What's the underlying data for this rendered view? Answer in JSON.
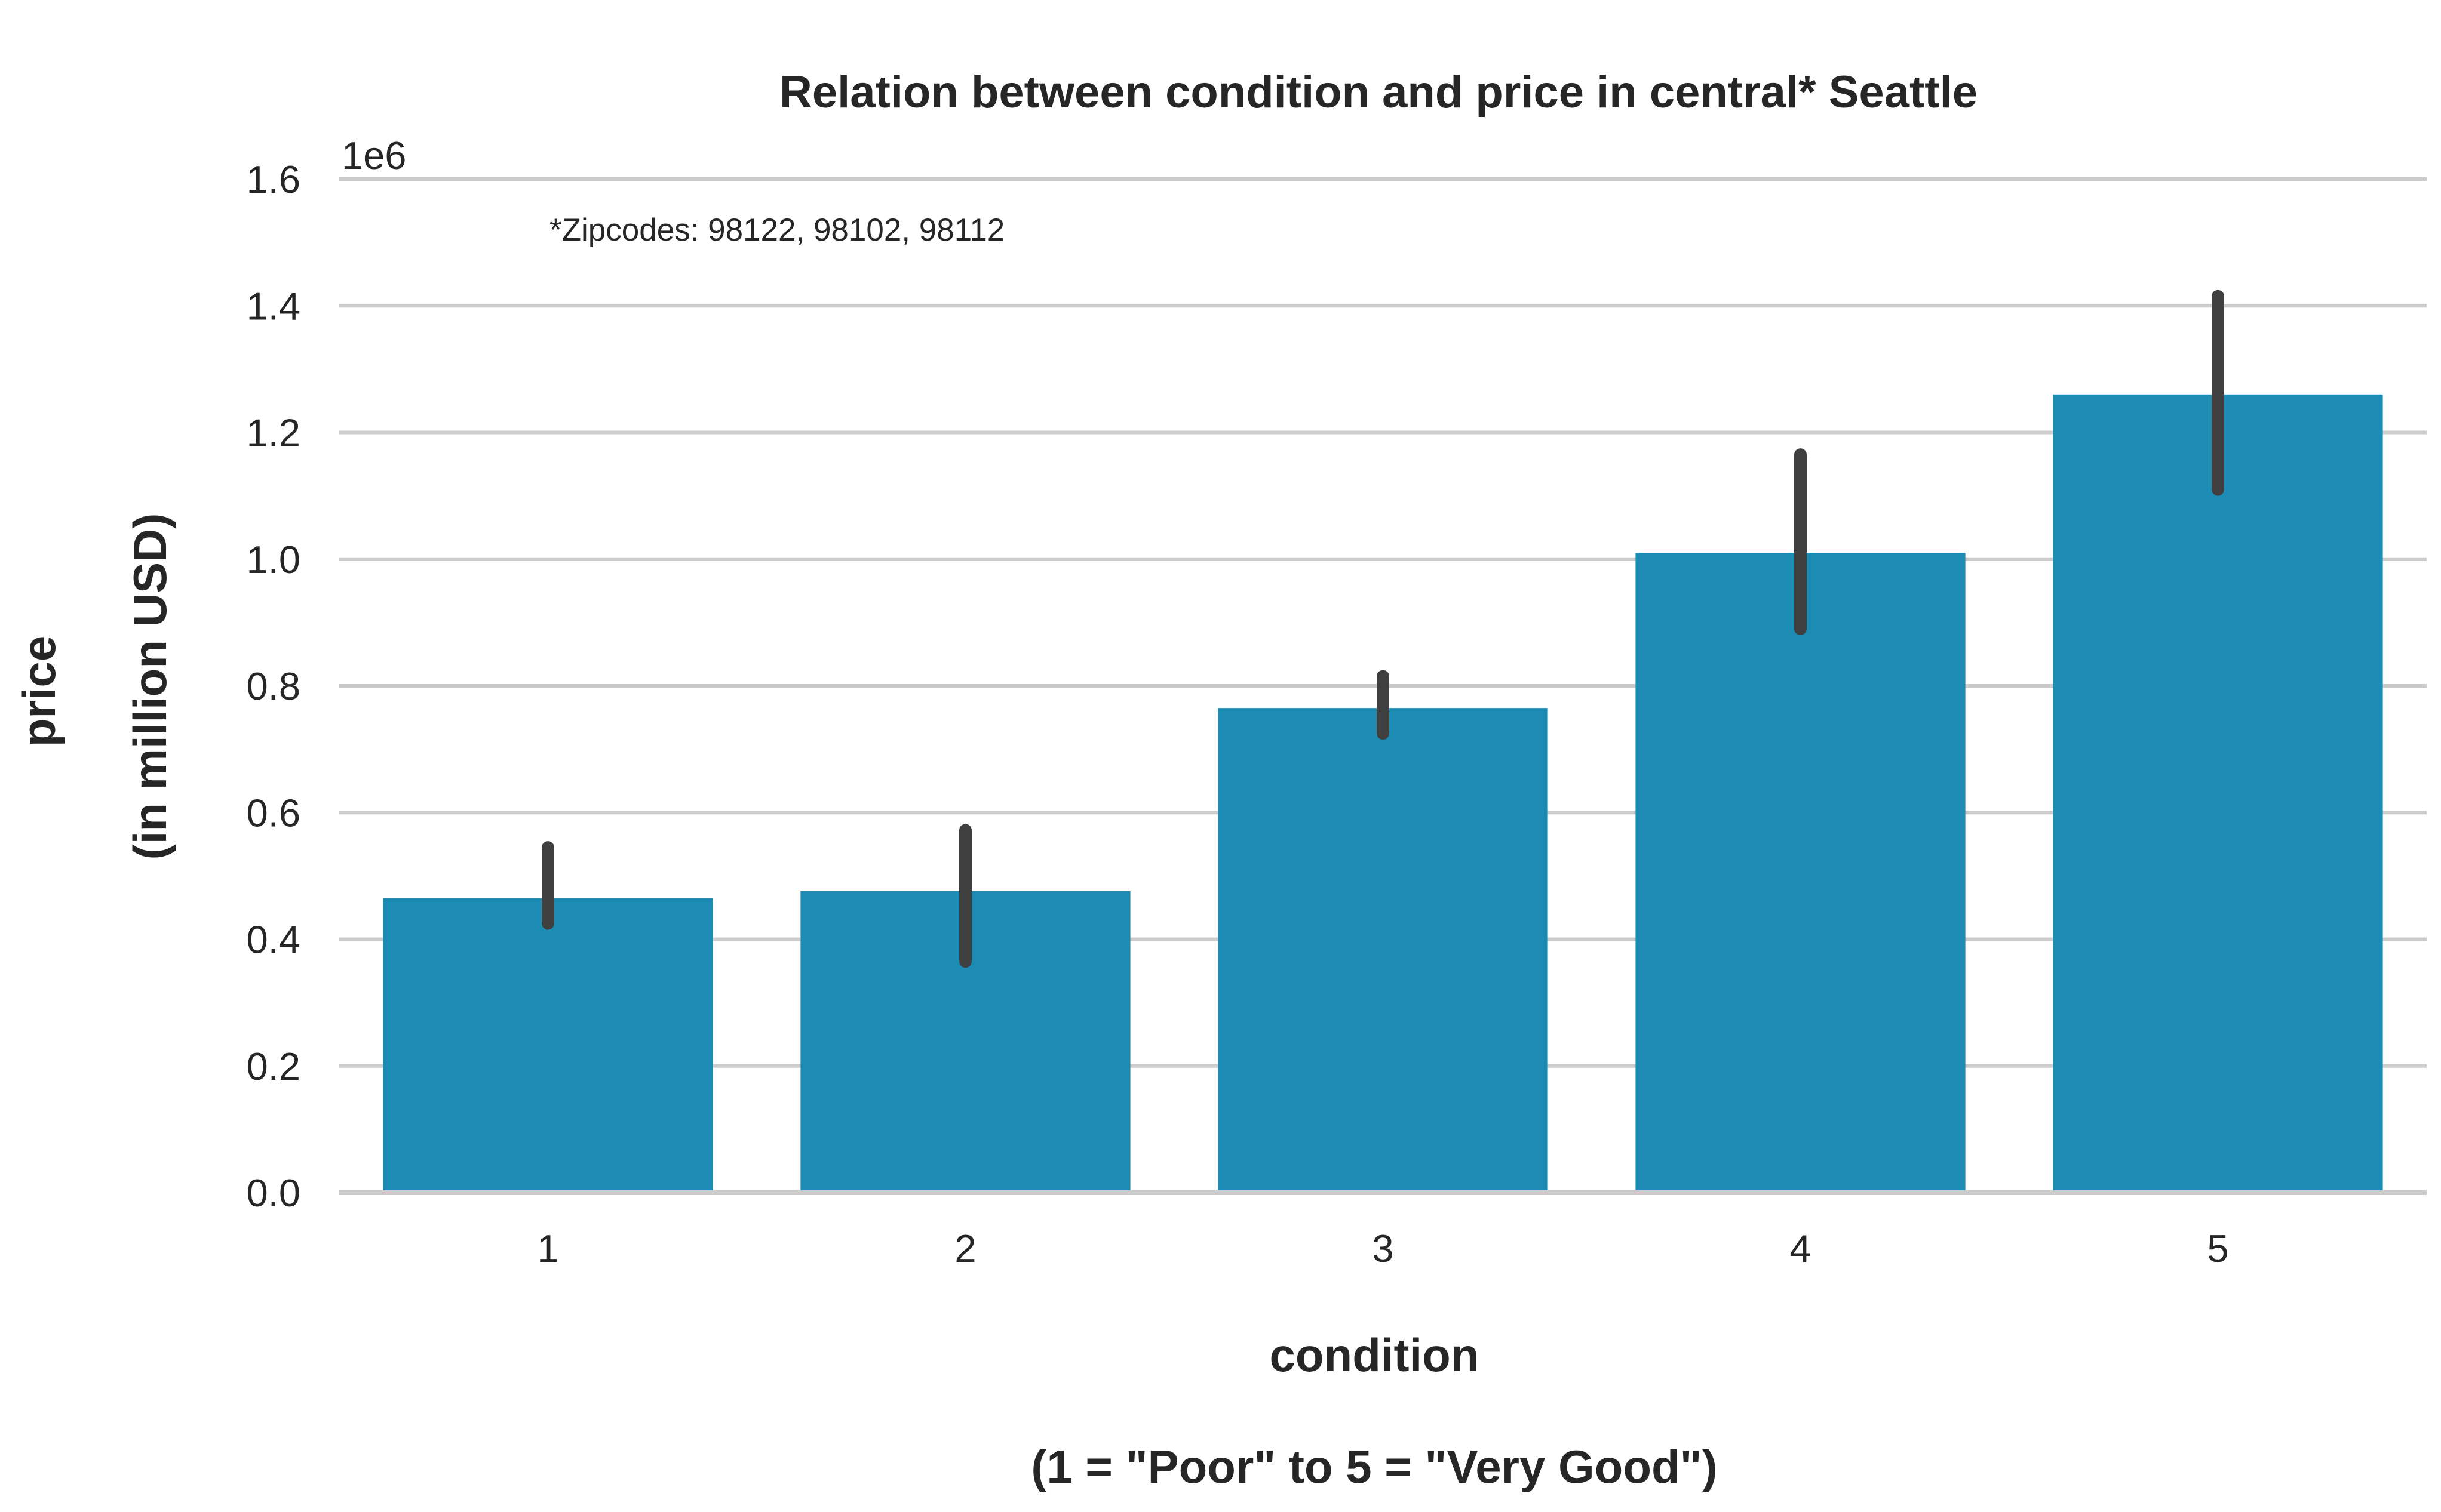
{
  "chart_data": {
    "type": "bar",
    "title": "Relation between condition and price in central* Seattle",
    "annotation": "*Zipcodes: 98122, 98102, 98112",
    "xlabel_line1": "condition",
    "xlabel_line2": "(1 = \"Poor\" to 5 = \"Very Good\")",
    "ylabel_line1": "price",
    "ylabel_line2": "(in million USD)",
    "y_offset_label": "1e6",
    "categories": [
      "1",
      "2",
      "3",
      "4",
      "5"
    ],
    "values": [
      465000,
      476000,
      765000,
      1010000,
      1260000
    ],
    "error_low": [
      425000,
      365000,
      725000,
      890000,
      1110000
    ],
    "error_high": [
      545000,
      572000,
      815000,
      1165000,
      1415000
    ],
    "ylim": [
      0,
      1600000
    ],
    "yticks": [
      0,
      200000,
      400000,
      600000,
      800000,
      1000000,
      1200000,
      1400000,
      1600000
    ],
    "ytick_labels": [
      "0.0",
      "0.2",
      "0.4",
      "0.6",
      "0.8",
      "1.0",
      "1.2",
      "1.4",
      "1.6"
    ],
    "grid": true,
    "bar_color": "#1c8cb4",
    "error_color": "#3f3f3f",
    "grid_color": "#cccccc"
  }
}
